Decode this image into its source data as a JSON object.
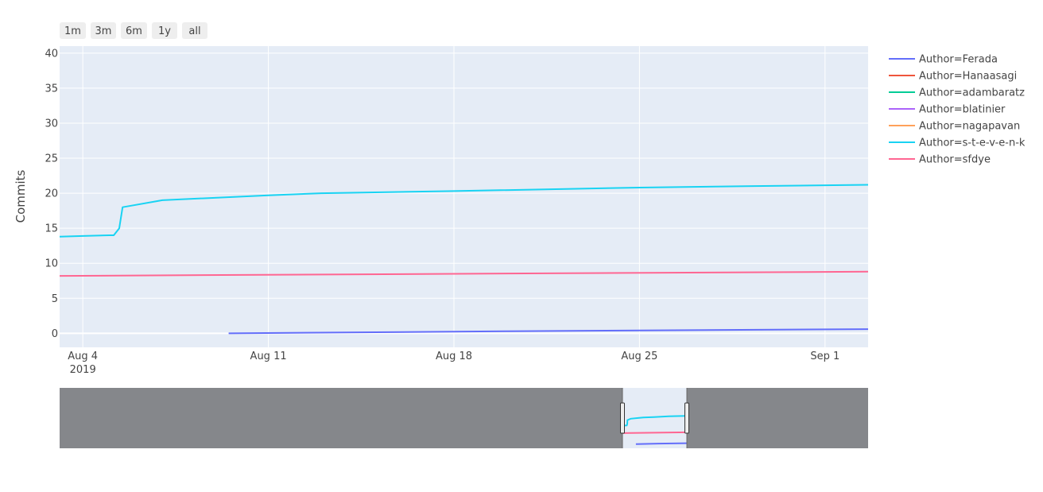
{
  "range_selector": {
    "buttons": [
      "1m",
      "3m",
      "6m",
      "1y",
      "all"
    ]
  },
  "chart_data": {
    "type": "line",
    "title": "",
    "xlabel": "",
    "ylabel": "Commits",
    "x_type": "date",
    "xlim": [
      "2019-08-03T03:00",
      "2019-09-02T15:00"
    ],
    "ylim": [
      -2,
      41
    ],
    "x_tick_labels": [
      {
        "date": "2019-08-04",
        "label": "Aug 4",
        "sublabel": "2019"
      },
      {
        "date": "2019-08-11",
        "label": "Aug 11",
        "sublabel": ""
      },
      {
        "date": "2019-08-18",
        "label": "Aug 18",
        "sublabel": ""
      },
      {
        "date": "2019-08-25",
        "label": "Aug 25",
        "sublabel": ""
      },
      {
        "date": "2019-09-01",
        "label": "Sep 1",
        "sublabel": ""
      }
    ],
    "y_ticks": [
      0,
      5,
      10,
      15,
      20,
      25,
      30,
      35,
      40
    ],
    "grid": true,
    "legend_position": "right",
    "series": [
      {
        "name": "Author=Ferada",
        "color": "#636efa",
        "x": [
          "2019-08-09T12:00",
          "2019-08-20T00:00",
          "2019-09-02T15:00"
        ],
        "y": [
          0,
          0.3,
          0.6
        ]
      },
      {
        "name": "Author=Hanaasagi",
        "color": "#EF553B",
        "x": [],
        "y": []
      },
      {
        "name": "Author=adambaratz",
        "color": "#00cc96",
        "x": [],
        "y": []
      },
      {
        "name": "Author=blatinier",
        "color": "#ab63fa",
        "x": [],
        "y": []
      },
      {
        "name": "Author=nagapavan",
        "color": "#FFA15A",
        "x": [],
        "y": []
      },
      {
        "name": "Author=s-t-e-v-e-n-k",
        "color": "#19d3f3",
        "x": [
          "2019-08-03T03:00",
          "2019-08-04T00:00",
          "2019-08-05T00:00",
          "2019-08-05T04:00",
          "2019-08-05T09:00",
          "2019-08-05T12:00",
          "2019-08-07T00:00",
          "2019-08-11T00:00",
          "2019-08-13T00:00",
          "2019-08-18T00:00",
          "2019-08-25T00:00",
          "2019-08-29T00:00",
          "2019-09-02T15:00"
        ],
        "y": [
          13.8,
          13.9,
          14.0,
          14.0,
          15.0,
          18.0,
          19.0,
          19.7,
          20.0,
          20.3,
          20.8,
          21.0,
          21.2
        ]
      },
      {
        "name": "Author=sfdye",
        "color": "#FF6692",
        "x": [
          "2019-08-03T03:00",
          "2019-09-02T15:00"
        ],
        "y": [
          8.2,
          8.8
        ]
      }
    ]
  }
}
